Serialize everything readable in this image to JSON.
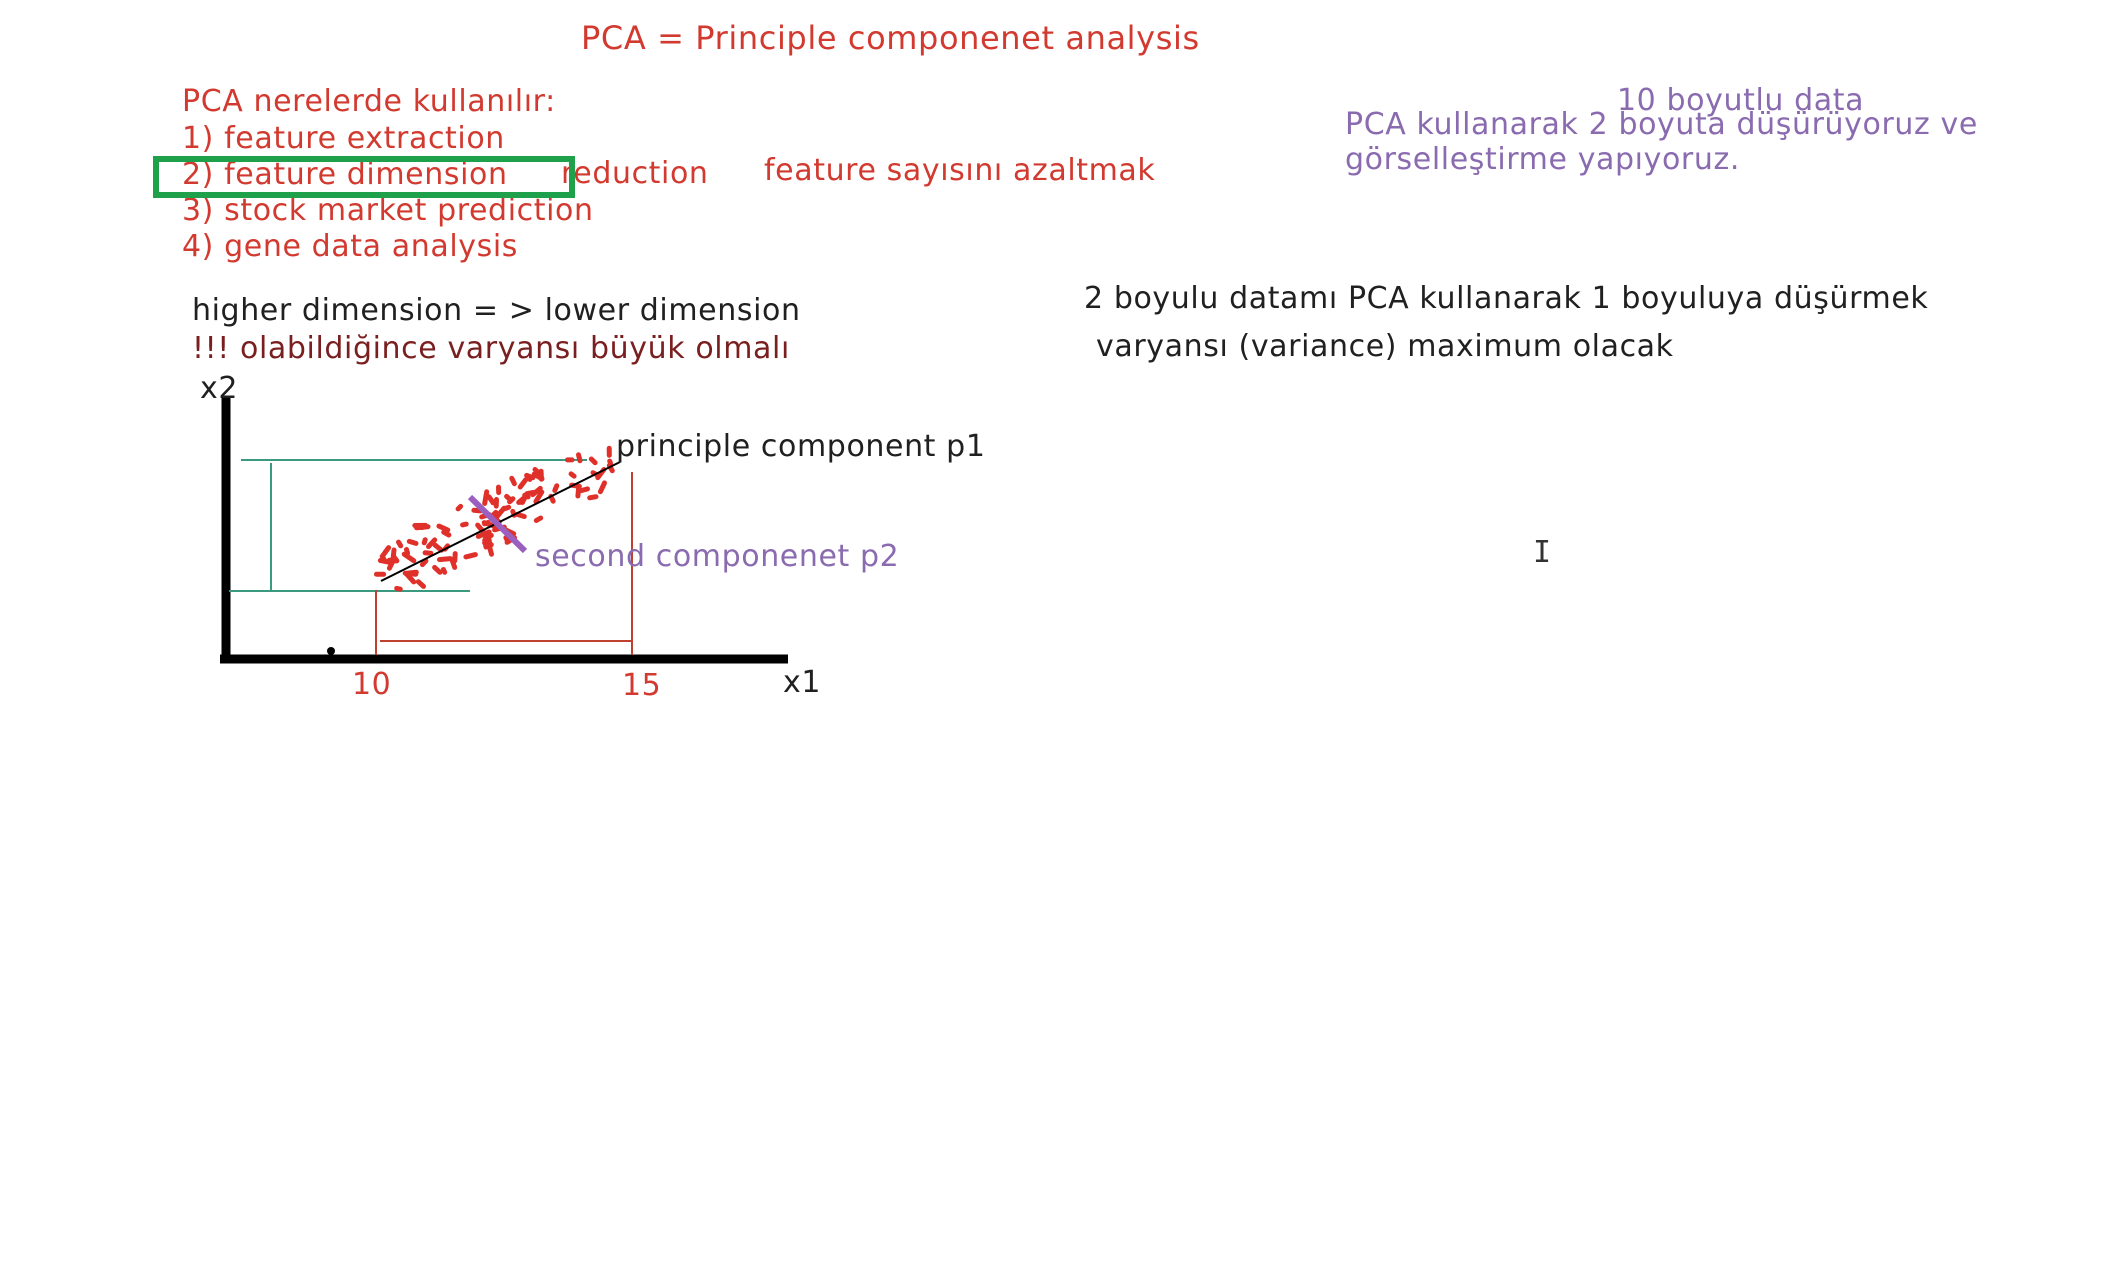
{
  "title": "PCA = Principle componenet analysis",
  "uses": {
    "heading": "PCA nerelerde kullanılır:",
    "items": [
      "1) feature extraction",
      "2) feature dimension",
      "3) stock market prediction",
      "4) gene data analysis"
    ],
    "reduction_word": "reduction",
    "note": "feature sayısını azaltmak"
  },
  "dimension_note": {
    "line1": "higher dimension = > lower dimension",
    "line2": "!!! olabildiğince varyansı büyük olmalı"
  },
  "right_notes": {
    "data_label": "10 boyutlu data",
    "line1": "PCA kullanarak 2 boyuta düşürüyoruz ve",
    "line2": "görselleştirme yapıyoruz.",
    "reduce_text": "2 boyulu datamı PCA kullanarak 1 boyuluya düşürmek",
    "variance_text": "varyansı (variance) maximum olacak"
  },
  "plot": {
    "y_axis_label": "x2",
    "x_axis_label": "x1",
    "x_ticks": [
      "10",
      "15"
    ],
    "p1_label": "principle component  p1",
    "p2_label": "second componenet  p2"
  },
  "colors": {
    "red": "#d23a30",
    "purple": "#8a6bb0",
    "highlight_green": "#1fa04a",
    "teal_lines": "#3a9a80"
  },
  "cursor_icon": "text-cursor-icon"
}
